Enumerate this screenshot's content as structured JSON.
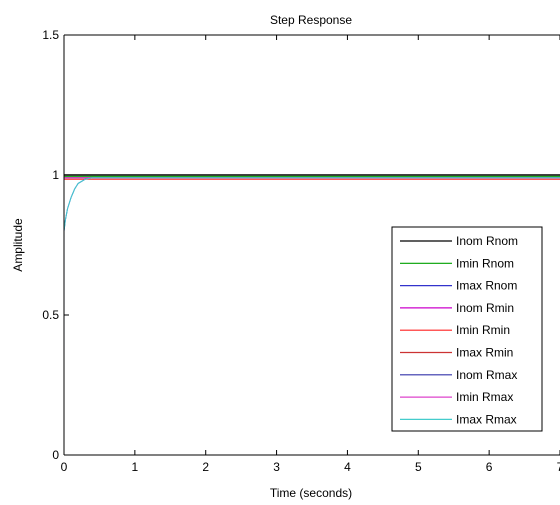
{
  "chart_data": {
    "type": "line",
    "title": "Step Response",
    "xlabel": "Time (seconds)",
    "ylabel": "Amplitude",
    "xlim": [
      0,
      7
    ],
    "ylim": [
      0,
      1.5
    ],
    "xticks": [
      0,
      1,
      2,
      3,
      4,
      5,
      6,
      7
    ],
    "yticks": [
      0,
      0.5,
      1,
      1.5
    ],
    "xtick_labels": [
      "0",
      "1",
      "2",
      "3",
      "4",
      "5",
      "6",
      "7"
    ],
    "ytick_labels": [
      "0",
      "0.5",
      "1",
      "1.5"
    ],
    "grid": false,
    "legend_position": "right",
    "series": [
      {
        "name": "Inom Rnom",
        "color": "#000000",
        "x": [
          0,
          7
        ],
        "y": [
          1,
          1
        ]
      },
      {
        "name": "Imin Rnom",
        "color": "#00a000",
        "x": [
          0,
          7
        ],
        "y": [
          0.995,
          0.995
        ]
      },
      {
        "name": "Imax Rnom",
        "color": "#3333cc",
        "x": [
          0,
          0.0001,
          0.02,
          0.05,
          0.1,
          0.15,
          0.2,
          0.3,
          0.4,
          0.5,
          0.6,
          7
        ],
        "y": [
          0,
          0.8,
          0.84,
          0.88,
          0.92,
          0.95,
          0.97,
          0.985,
          0.99,
          0.99,
          0.99,
          0.99
        ]
      },
      {
        "name": "Inom Rmin",
        "color": "#cc00cc",
        "x": [
          0,
          7
        ],
        "y": [
          0.99,
          0.99
        ]
      },
      {
        "name": "Imin Rmin",
        "color": "#ff2020",
        "x": [
          0,
          7
        ],
        "y": [
          0.985,
          0.985
        ]
      },
      {
        "name": "Imax Rmin",
        "color": "#cc3333",
        "x": [
          0,
          7
        ],
        "y": [
          0.99,
          0.99
        ]
      },
      {
        "name": "Inom Rmax",
        "color": "#3333aa",
        "x": [
          0,
          7
        ],
        "y": [
          0.99,
          0.99
        ]
      },
      {
        "name": "Imin Rmax",
        "color": "#dd44cc",
        "x": [
          0,
          7
        ],
        "y": [
          0.99,
          0.99
        ]
      },
      {
        "name": "Imax Rmax",
        "color": "#44cccc",
        "x": [
          0,
          0.0001,
          0.02,
          0.05,
          0.1,
          0.15,
          0.2,
          0.3,
          0.4,
          0.5,
          0.6,
          7
        ],
        "y": [
          0,
          0.8,
          0.84,
          0.88,
          0.92,
          0.95,
          0.97,
          0.985,
          0.99,
          0.99,
          0.99,
          0.99
        ]
      }
    ]
  }
}
